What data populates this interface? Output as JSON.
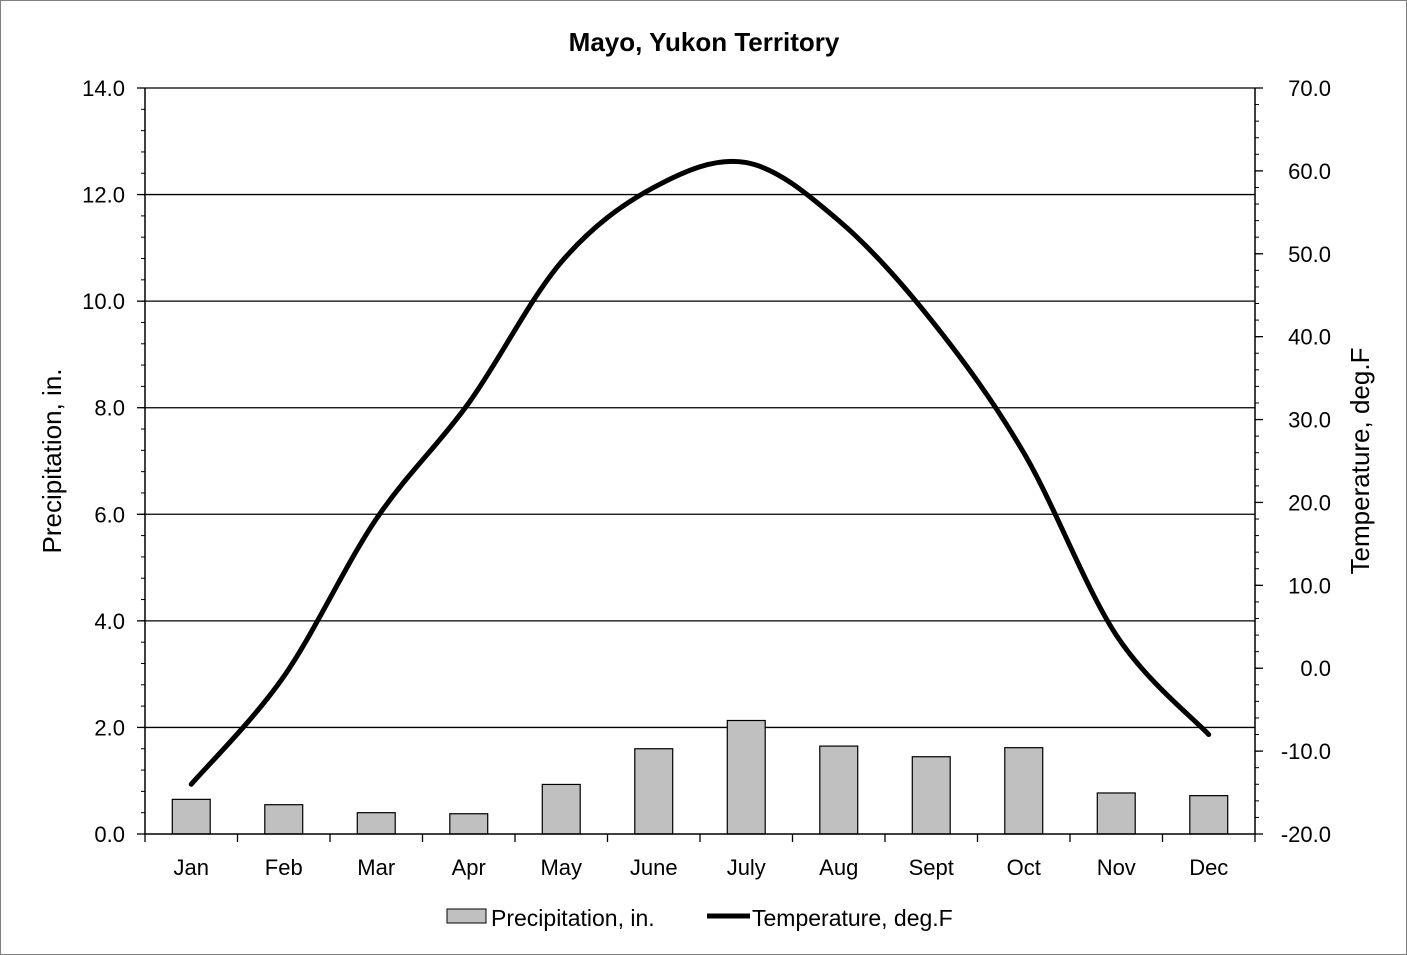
{
  "chart_data": {
    "type": "bar",
    "title": "Mayo, Yukon Territory",
    "categories": [
      "Jan",
      "Feb",
      "Mar",
      "Apr",
      "May",
      "June",
      "July",
      "Aug",
      "Sept",
      "Oct",
      "Nov",
      "Dec"
    ],
    "series": [
      {
        "name": "Precipitation, in.",
        "type": "bar",
        "axis": "left",
        "color": "#c0c0c0",
        "values": [
          0.65,
          0.55,
          0.4,
          0.38,
          0.93,
          1.6,
          2.13,
          1.65,
          1.45,
          1.62,
          0.77,
          0.72
        ]
      },
      {
        "name": "Temperature, deg.F",
        "type": "line",
        "axis": "right",
        "color": "#000000",
        "values": [
          -14.0,
          -1.0,
          18.0,
          32.0,
          49.0,
          58.0,
          61.0,
          54.0,
          42.0,
          26.0,
          4.0,
          -8.0
        ]
      }
    ],
    "ylabel": "Precipitation, in.",
    "ylabel_right": "Temperature, deg.F",
    "ylim": [
      0,
      14
    ],
    "ylim_right": [
      -20,
      70
    ],
    "yticks": [
      "0.0",
      "2.0",
      "4.0",
      "6.0",
      "8.0",
      "10.0",
      "12.0",
      "14.0"
    ],
    "yticks_right": [
      "-20.0",
      "-10.0",
      "0.0",
      "10.0",
      "20.0",
      "30.0",
      "40.0",
      "50.0",
      "60.0",
      "70.0"
    ],
    "grid": true,
    "legend_position": "bottom-center"
  }
}
